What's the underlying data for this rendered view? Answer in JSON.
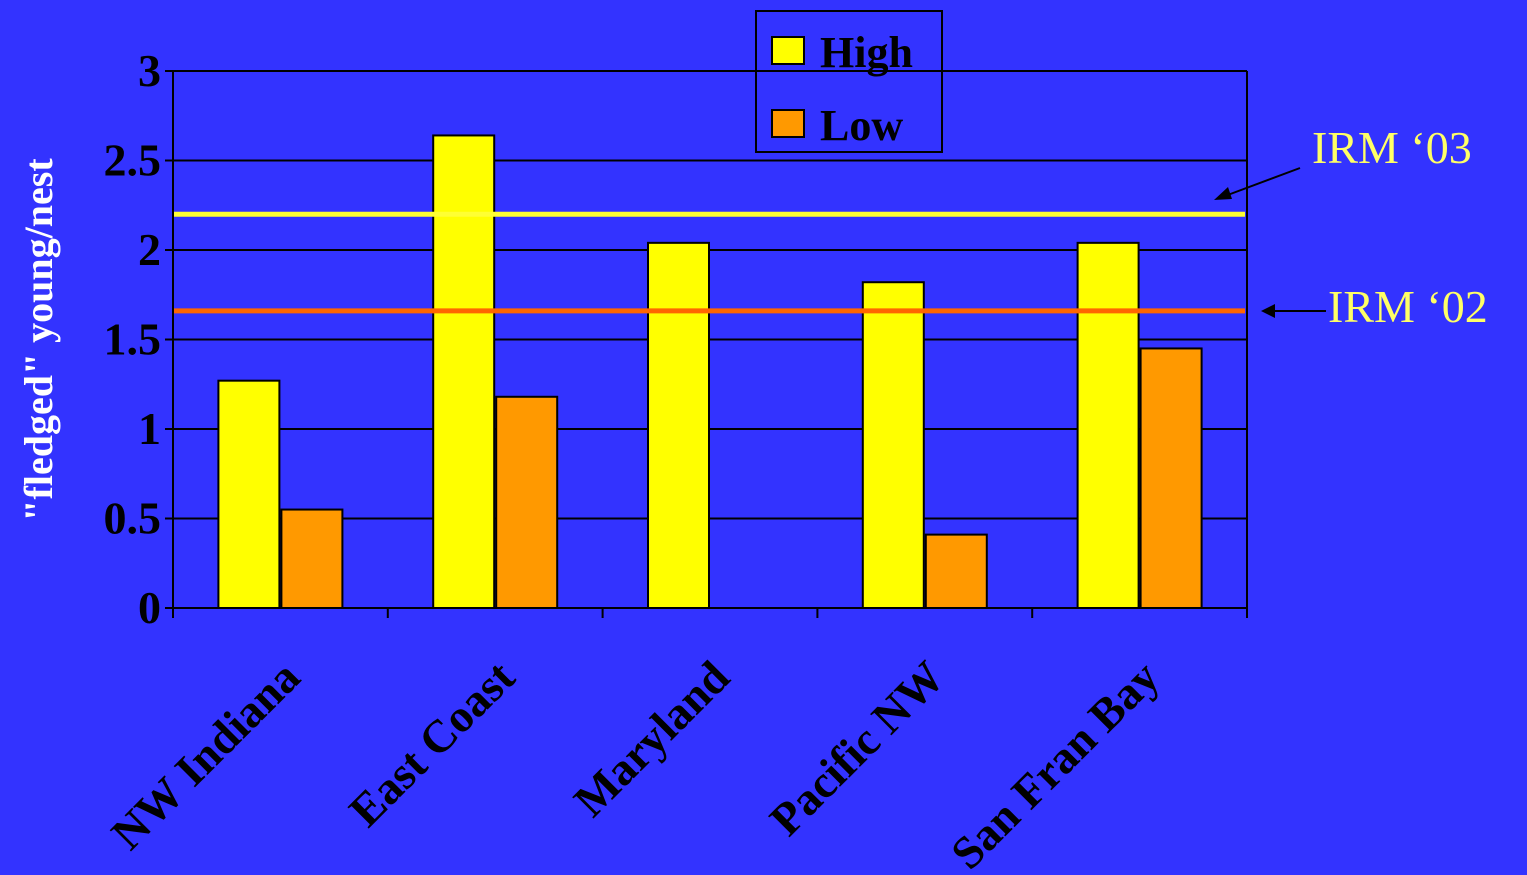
{
  "chart_data": {
    "type": "bar",
    "title": "",
    "xlabel": "",
    "ylabel": "\"fledged\" young/nest",
    "ylim": [
      0,
      3
    ],
    "yticks": [
      "0",
      "0.5",
      "1",
      "1.5",
      "2",
      "2.5",
      "3"
    ],
    "categories": [
      "NW Indiana",
      "East Coast",
      "Maryland",
      "Pacific NW",
      "San Fran Bay"
    ],
    "series": [
      {
        "name": "High",
        "values": [
          1.27,
          2.64,
          2.04,
          1.82,
          2.04
        ]
      },
      {
        "name": "Low",
        "values": [
          0.55,
          1.18,
          0,
          0.41,
          1.45
        ]
      }
    ],
    "reference_lines": [
      {
        "label": "IRM ‘03",
        "value": 2.2
      },
      {
        "label": "IRM ‘02",
        "value": 1.66
      }
    ],
    "grid": true,
    "legend_position": "top-center",
    "colors": {
      "background": "#3333ff",
      "high": "#ffff00",
      "low": "#ff9900",
      "irm03": "#ffff33",
      "irm02": "#ff6600",
      "axis": "#000000",
      "reference_text": "#ffff66"
    }
  }
}
